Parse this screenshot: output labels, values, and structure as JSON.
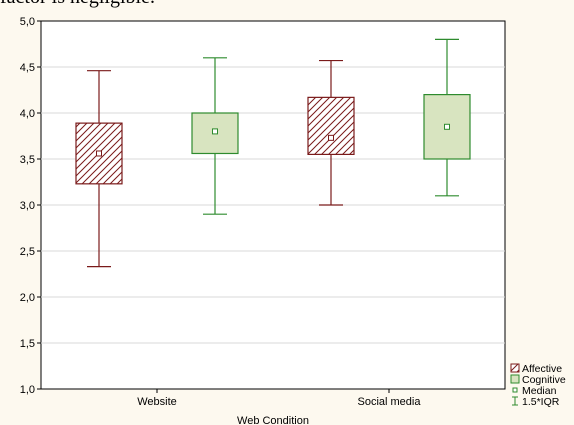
{
  "page_header_text": "factor is negligible.",
  "chart_data": {
    "type": "boxplot",
    "title": "",
    "xlabel": "Web Condition",
    "ylabel": "",
    "ylim": [
      1.0,
      5.0
    ],
    "yticks": [
      1.0,
      1.5,
      2.0,
      2.5,
      3.0,
      3.5,
      4.0,
      4.5,
      5.0
    ],
    "ytick_labels": [
      "1,0",
      "1,5",
      "2,0",
      "2,5",
      "3,0",
      "3,5",
      "4,0",
      "4,5",
      "5,0"
    ],
    "grid": true,
    "categories": [
      "Website",
      "Social media"
    ],
    "series": [
      {
        "name": "Affective",
        "color": "#7a1a1a",
        "fill": "hatched",
        "boxes": [
          {
            "median": 3.56,
            "q1": 3.23,
            "q3": 3.89,
            "whisker_low": 2.33,
            "whisker_high": 4.46
          },
          {
            "median": 3.73,
            "q1": 3.55,
            "q3": 4.17,
            "whisker_low": 3.0,
            "whisker_high": 4.57
          }
        ]
      },
      {
        "name": "Cognitive",
        "color": "#2e8b2e",
        "fill": "#d8e4c0",
        "boxes": [
          {
            "median": 3.8,
            "q1": 3.56,
            "q3": 4.0,
            "whisker_low": 2.9,
            "whisker_high": 4.6
          },
          {
            "median": 3.85,
            "q1": 3.5,
            "q3": 4.2,
            "whisker_low": 3.1,
            "whisker_high": 4.8
          }
        ]
      }
    ],
    "legend": {
      "placement": "bottom-right",
      "items": [
        {
          "label": "Affective",
          "symbol": "hatched-box"
        },
        {
          "label": "Cognitive",
          "symbol": "filled-box"
        },
        {
          "label": "Median",
          "symbol": "small-square"
        },
        {
          "label": "1.5*IQR",
          "symbol": "whisker"
        }
      ]
    }
  }
}
